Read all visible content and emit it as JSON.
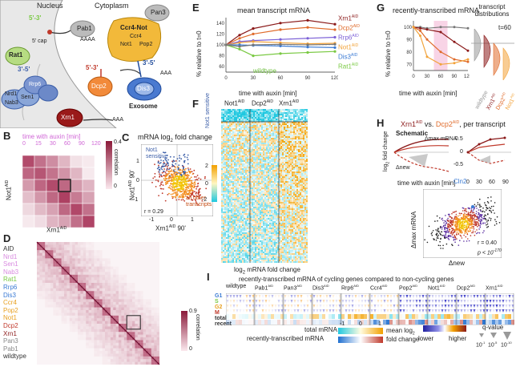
{
  "panels": {
    "A": {
      "label": "A",
      "nucleus": "Nucleus",
      "cytoplasm": "Cytoplasm",
      "cap": "5' cap",
      "rat1": "Rat1",
      "rat1_dir": "5'-3'",
      "rrp6": "Rrp6",
      "nrd1": "Nrd1",
      "sen1": "Sen1",
      "nab3": "Nab3",
      "nuc_dir": "3'-5'",
      "pab1": "Pab1",
      "polyA": "AAAA",
      "pan3": "Pan3",
      "ccr4not": "Ccr4-Not",
      "ccr4": "Ccr4",
      "not1": "Not1",
      "pop2": "Pop2",
      "dcp2": "Dcp2",
      "dis3": "Dis3",
      "cyto_dir53": "5'-3'",
      "cyto_dir35": "3'-5'",
      "exosome": "Exosome",
      "xrn1": "Xrn1",
      "polyA2": "AAA",
      "polyA3": "AAA"
    },
    "B": {
      "label": "B",
      "time_title": "time with auxin [min]",
      "times": [
        "0",
        "15",
        "30",
        "60",
        "90",
        "120"
      ],
      "y": "Not1",
      "y_sup": "AID",
      "x": "Xrn1",
      "x_sup": "AID",
      "cbar_max": "0.4",
      "cbar_min": "0",
      "cbar_label": "correlation"
    },
    "C": {
      "label": "C",
      "title": "mRNA log",
      "title_sub": "2",
      "title_end": " fold change",
      "not1_sensitive": "Not1 sensitive",
      "all_other": "all other transcripts",
      "r": "r = 0.29",
      "y": "Not1",
      "y_sup": "AID",
      "y_end": " 90'",
      "x": "Xrn1",
      "x_sup": "AID",
      "x_end": " 90'",
      "xticks": [
        "-1",
        "0",
        "1"
      ],
      "yticks": [
        "1",
        "0",
        "-1"
      ]
    },
    "D": {
      "label": "D",
      "rows": [
        {
          "name": "AID",
          "color": "#333333"
        },
        {
          "name": "Nrd1",
          "color": "#d98be0"
        },
        {
          "name": "Sen1",
          "color": "#d98be0"
        },
        {
          "name": "Nab3",
          "color": "#d98be0"
        },
        {
          "name": "Rat1",
          "color": "#7ac943"
        },
        {
          "name": "Rrp6",
          "color": "#3b7bd4"
        },
        {
          "name": "Dis3",
          "color": "#3b7bd4"
        },
        {
          "name": "Ccr4",
          "color": "#e8a020"
        },
        {
          "name": "Pop2",
          "color": "#e8a020"
        },
        {
          "name": "Not1",
          "color": "#e8a020"
        },
        {
          "name": "Dcp2",
          "color": "#c0392b"
        },
        {
          "name": "Xrn1",
          "color": "#8b1a1a"
        },
        {
          "name": "Pan3",
          "color": "#888888"
        },
        {
          "name": "Pab1",
          "color": "#888888"
        },
        {
          "name": "wildtype",
          "color": "#333333"
        }
      ],
      "cbar_max": "0.9",
      "cbar_min": "0",
      "cbar_label": "correlation"
    },
    "E": {
      "label": "E",
      "title": "mean transcript mRNA",
      "ylabel": "% relative to t=0",
      "xlabel": "time with auxin [min]",
      "wildtype": "wildtype",
      "xticks": [
        "0",
        "30",
        "60",
        "90",
        "120"
      ],
      "yticks": [
        "140",
        "120",
        "100",
        "80",
        "60"
      ]
    },
    "F": {
      "label": "F",
      "sensitive": "Not1 sensitive",
      "cols": [
        "Not1",
        "Dcp2",
        "Xrn1"
      ],
      "sup": "AID",
      "xlabel": "log",
      "xlabel_sub": "2",
      "xlabel_end": " mRNA fold change",
      "cbar_ticks": [
        "2",
        "0",
        "-2"
      ]
    },
    "G": {
      "label": "G",
      "title": "recently-transcribed mRNA",
      "ylabel": "% relative to t=0",
      "xlabel": "time with auxin [min]",
      "xticks": [
        "0",
        "30",
        "60",
        "90",
        "120"
      ],
      "yticks": [
        "100",
        "90",
        "80",
        "70"
      ],
      "dist_title": "transcript distributions",
      "t60": "t=60",
      "dist_labels": [
        "wildtype",
        "Xrn1",
        "Dcp2",
        "Not1"
      ],
      "dist_sup": "AID"
    },
    "H": {
      "label": "H",
      "title_a": "Xrn1",
      "title_a_sup": "AID",
      "title_vs": " vs. ",
      "title_b": "Dcp2",
      "title_b_sup": "AID",
      "title_end": ", per transcript",
      "schematic": "Schematic",
      "dmax": "Δmax mRNA",
      "dnew": "Δnew",
      "ylabel": "log",
      "ylabel_sub": "2",
      "ylabel_end": " fold change",
      "xlabel": "time with auxin [min]",
      "xticks": [
        "0",
        "30",
        "60",
        "90"
      ],
      "yticks": [
        "0.5",
        "0",
        "-0.5"
      ],
      "cln2": "Cln2",
      "scatter_y": "Δmax mRNA",
      "scatter_x": "Δnew",
      "r": "r = 0.40",
      "p": "p < 10",
      "p_exp": "-170"
    },
    "I": {
      "label": "I",
      "title": "recently-transcribed mRNA of cycling genes compared to non-cycling genes",
      "strains": [
        "wildtype",
        "Pab1",
        "Pan3",
        "Dis3",
        "Rrp6",
        "Ccr4",
        "Pop2",
        "Not1",
        "Dcp2",
        "Xrn1"
      ],
      "sup": "AID",
      "rows": [
        {
          "name": "G1",
          "color": "#3b7bd4"
        },
        {
          "name": "S",
          "color": "#7ac943"
        },
        {
          "name": "G2",
          "color": "#e8a020"
        },
        {
          "name": "M",
          "color": "#c0392b"
        },
        {
          "name": "total",
          "color": "#333333"
        },
        {
          "name": "recent",
          "color": "#333333"
        }
      ],
      "legend_total": "total mRNA",
      "legend_recent": "recently-transcribed mRNA",
      "legend_min": "-1",
      "legend_mid": "0",
      "legend_max": "1",
      "legend_mean": "mean log",
      "legend_mean_sub": "2",
      "legend_fc": "fold change",
      "lower": "lower",
      "higher": "higher",
      "qvalue": "q-value",
      "q_ticks": [
        "10",
        "10",
        "10"
      ],
      "q_exps": [
        "-1",
        "-5",
        "-10"
      ]
    }
  },
  "chart_data": [
    {
      "type": "line",
      "panel": "E",
      "title": "mean transcript mRNA",
      "xlabel": "time with auxin [min]",
      "ylabel": "% relative to t=0",
      "x": [
        0,
        15,
        30,
        60,
        90,
        120
      ],
      "xlim": [
        0,
        120
      ],
      "ylim": [
        50,
        150
      ],
      "series": [
        {
          "name": "Xrn1AID",
          "color": "#8b1a1a",
          "values": [
            100,
            118,
            130,
            140,
            145,
            138
          ]
        },
        {
          "name": "Dcp2AID",
          "color": "#e06c2c",
          "values": [
            100,
            112,
            120,
            128,
            132,
            128
          ]
        },
        {
          "name": "Rrp6AID",
          "color": "#7b5fd6",
          "values": [
            100,
            106,
            108,
            110,
            112,
            114
          ]
        },
        {
          "name": "Not1AID",
          "color": "#f2a33a",
          "values": [
            100,
            104,
            106,
            104,
            102,
            103
          ]
        },
        {
          "name": "Dis3AID",
          "color": "#3b7bd4",
          "values": [
            100,
            100,
            99,
            98,
            96,
            95
          ]
        },
        {
          "name": "Rat1AID",
          "color": "#7ac943",
          "values": [
            100,
            92,
            80,
            84,
            86,
            88
          ]
        },
        {
          "name": "wildtype",
          "color": "#777777",
          "values": [
            100,
            97,
            100,
            101,
            100,
            101
          ]
        }
      ]
    },
    {
      "type": "line",
      "panel": "G",
      "title": "recently-transcribed mRNA",
      "xlabel": "time with auxin [min]",
      "ylabel": "% relative to t=0",
      "x": [
        0,
        15,
        30,
        60,
        90,
        120
      ],
      "xlim": [
        0,
        120
      ],
      "ylim": [
        65,
        105
      ],
      "series": [
        {
          "name": "wildtype",
          "color": "#777777",
          "values": [
            100,
            100,
            99,
            100,
            100,
            99
          ]
        },
        {
          "name": "Xrn1AID",
          "color": "#8b1a1a",
          "values": [
            100,
            99,
            98,
            96,
            88,
            81
          ]
        },
        {
          "name": "Dcp2AID",
          "color": "#e06c2c",
          "values": [
            100,
            97,
            90,
            80,
            74,
            72
          ]
        },
        {
          "name": "Not1AID",
          "color": "#f2a33a",
          "values": [
            100,
            93,
            76,
            70,
            71,
            74
          ]
        }
      ]
    },
    {
      "type": "scatter",
      "panel": "C",
      "title": "mRNA log2 fold change",
      "xlabel": "Xrn1AID 90'",
      "ylabel": "Not1AID 90'",
      "xlim": [
        -1.2,
        1.5
      ],
      "ylim": [
        -1.2,
        1.5
      ],
      "r": 0.29
    },
    {
      "type": "scatter",
      "panel": "H",
      "xlabel": "Δnew",
      "ylabel": "Δmax mRNA",
      "r": 0.4
    }
  ]
}
